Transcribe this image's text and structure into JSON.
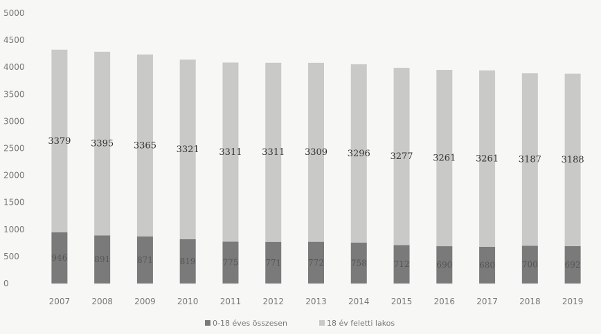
{
  "chart_data": {
    "type": "bar",
    "stacked": true,
    "categories": [
      "2007",
      "2008",
      "2009",
      "2010",
      "2011",
      "2012",
      "2013",
      "2014",
      "2015",
      "2016",
      "2017",
      "2018",
      "2019"
    ],
    "series": [
      {
        "name": "0-18 éves összesen",
        "values": [
          946,
          891,
          871,
          819,
          775,
          771,
          772,
          758,
          712,
          690,
          680,
          700,
          692
        ],
        "color": "#7a7a7a"
      },
      {
        "name": "18 év feletti lakos",
        "values": [
          3379,
          3395,
          3365,
          3321,
          3311,
          3311,
          3309,
          3296,
          3277,
          3261,
          3261,
          3187,
          3188
        ],
        "color": "#c9c9c7"
      }
    ],
    "ylim": [
      0,
      5000
    ],
    "yticks": [
      0,
      500,
      1000,
      1500,
      2000,
      2500,
      3000,
      3500,
      4000,
      4500,
      5000
    ],
    "xlabel": "",
    "ylabel": "",
    "title": "",
    "grid": false,
    "legend": "bottom"
  }
}
